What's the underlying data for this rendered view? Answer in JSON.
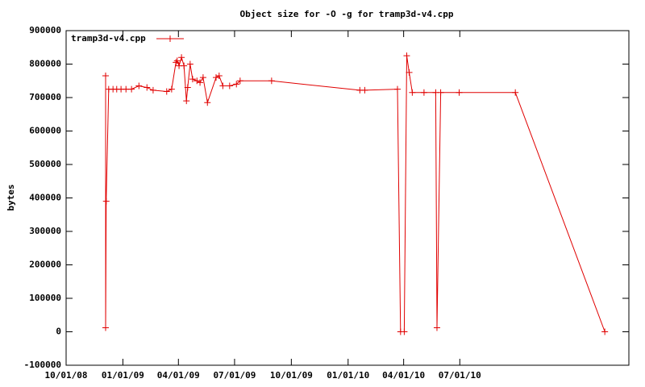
{
  "chart_data": {
    "type": "line",
    "title": "Object size for -O -g for tramp3d-v4.cpp",
    "y_label": "bytes",
    "x": [
      "2008-12-04",
      "2008-12-04",
      "2008-12-04",
      "2008-12-05",
      "2008-12-09",
      "2008-12-16",
      "2008-12-22",
      "2008-12-29",
      "2009-01-06",
      "2009-01-15",
      "2009-01-27",
      "2009-02-09",
      "2009-02-19",
      "2009-03-13",
      "2009-03-21",
      "2009-03-28",
      "2009-03-30",
      "2009-04-02",
      "2009-04-06",
      "2009-04-10",
      "2009-04-14",
      "2009-04-16",
      "2009-04-20",
      "2009-04-24",
      "2009-05-01",
      "2009-05-06",
      "2009-05-11",
      "2009-05-18",
      "2009-06-01",
      "2009-06-06",
      "2009-06-12",
      "2009-06-23",
      "2009-07-04",
      "2009-07-10",
      "2009-08-30",
      "2010-01-20",
      "2010-01-28",
      "2010-03-22",
      "2010-03-27",
      "2010-04-02",
      "2010-04-06",
      "2010-04-10",
      "2010-04-15",
      "2010-05-04",
      "2010-05-23",
      "2010-05-25",
      "2010-05-31",
      "2010-06-30",
      "2010-09-29",
      "2011-02-21"
    ],
    "series": [
      {
        "name": "tramp3d-v4.cpp",
        "color": "#e00000",
        "values": [
          765000,
          765000,
          12000,
          390000,
          725000,
          725000,
          725000,
          725000,
          725000,
          725000,
          735000,
          730000,
          722000,
          718000,
          725000,
          805000,
          810000,
          795000,
          820000,
          795000,
          690000,
          730000,
          800000,
          755000,
          750000,
          745000,
          760000,
          685000,
          760000,
          765000,
          735000,
          735000,
          740000,
          750000,
          750000,
          722000,
          722000,
          725000,
          0,
          0,
          825000,
          775000,
          715000,
          715000,
          715000,
          12000,
          715000,
          715000,
          715000,
          0
        ]
      }
    ],
    "xlim": [
      "2008-10-01",
      "2011-04-01"
    ],
    "xticks": [
      {
        "value": "2008-10-01",
        "label": "10/01/08"
      },
      {
        "value": "2009-01-01",
        "label": "01/01/09"
      },
      {
        "value": "2009-04-01",
        "label": "04/01/09"
      },
      {
        "value": "2009-07-01",
        "label": "07/01/09"
      },
      {
        "value": "2009-10-01",
        "label": "10/01/09"
      },
      {
        "value": "2010-01-01",
        "label": "01/01/10"
      },
      {
        "value": "2010-04-01",
        "label": "04/01/10"
      },
      {
        "value": "2010-07-01",
        "label": "07/01/10"
      }
    ],
    "ylim": [
      -100000,
      900000
    ],
    "yticks": [
      -100000,
      0,
      100000,
      200000,
      300000,
      400000,
      500000,
      600000,
      700000,
      800000,
      900000
    ],
    "legend": "top-left"
  }
}
